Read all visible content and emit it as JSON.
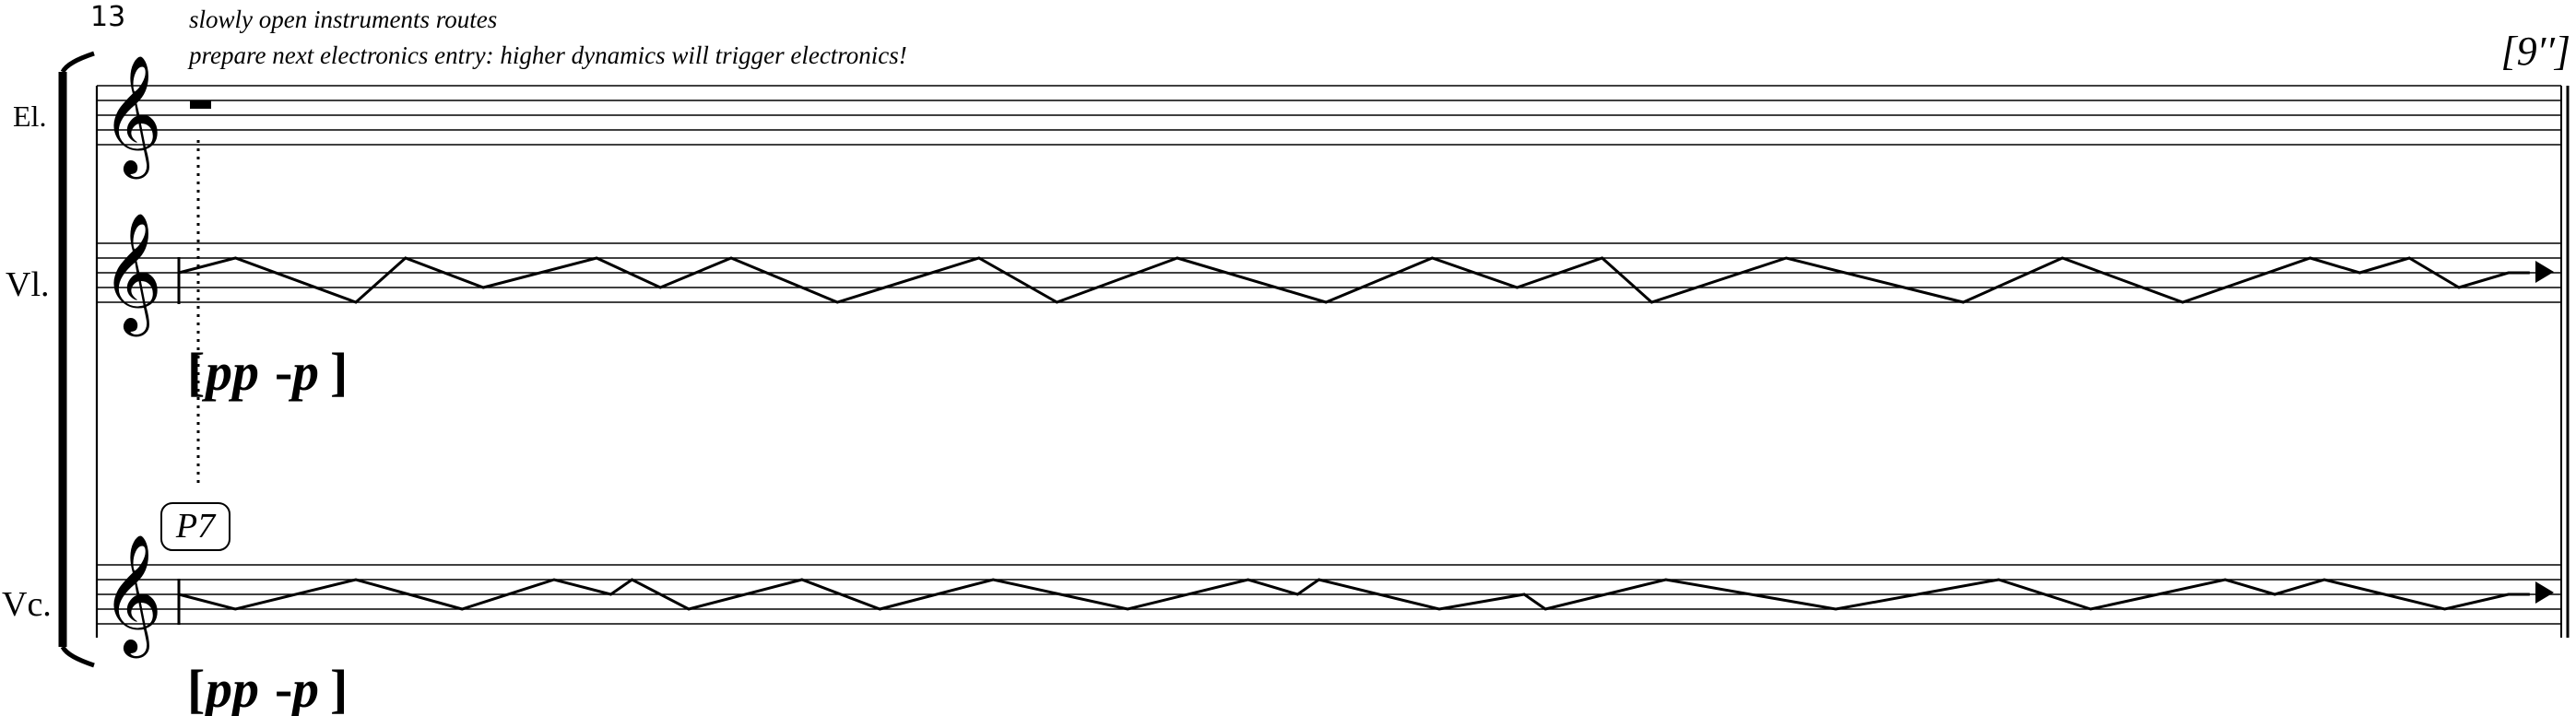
{
  "measure_number": "13",
  "instructions": {
    "line1": "slowly open instruments routes",
    "line2": "prepare next electronics entry: higher dynamics will trigger electronics!"
  },
  "duration_mark": "[9′′]",
  "staves": [
    {
      "id": "el",
      "label": "El.",
      "has_rest": true,
      "zigzag": []
    },
    {
      "id": "vl",
      "label": "Vl.",
      "dynamic": {
        "open": "[",
        "pp": "pp",
        "dash": "-",
        "p": "p",
        "close": "]"
      },
      "zigzag": [
        [
          0.0,
          2
        ],
        [
          0.08,
          1
        ],
        [
          0.25,
          4
        ],
        [
          0.32,
          1
        ],
        [
          0.43,
          3
        ],
        [
          0.59,
          1
        ],
        [
          0.68,
          3
        ],
        [
          0.78,
          1
        ],
        [
          0.93,
          4
        ],
        [
          1.13,
          1
        ],
        [
          1.24,
          4
        ],
        [
          1.41,
          1
        ],
        [
          1.62,
          4
        ],
        [
          1.77,
          1
        ],
        [
          1.89,
          3
        ],
        [
          2.01,
          1
        ],
        [
          2.08,
          4
        ],
        [
          2.27,
          1
        ],
        [
          2.52,
          4
        ],
        [
          2.66,
          1
        ],
        [
          2.83,
          4
        ],
        [
          3.01,
          1
        ],
        [
          3.08,
          2
        ],
        [
          3.15,
          1
        ],
        [
          3.22,
          3
        ],
        [
          3.29,
          2
        ],
        [
          3.32,
          2
        ]
      ]
    },
    {
      "id": "vc",
      "label": "Vc.",
      "rehearsal_box": "P7",
      "dynamic": {
        "open": "[",
        "pp": "pp",
        "dash": "-",
        "p": "p",
        "close": "]"
      },
      "zigzag": [
        [
          0.0,
          2
        ],
        [
          0.08,
          3
        ],
        [
          0.25,
          1
        ],
        [
          0.4,
          3
        ],
        [
          0.53,
          1
        ],
        [
          0.61,
          2
        ],
        [
          0.64,
          1
        ],
        [
          0.72,
          3
        ],
        [
          0.88,
          1
        ],
        [
          0.99,
          3
        ],
        [
          1.15,
          1
        ],
        [
          1.34,
          3
        ],
        [
          1.51,
          1
        ],
        [
          1.58,
          2
        ],
        [
          1.61,
          1
        ],
        [
          1.78,
          3
        ],
        [
          1.9,
          2
        ],
        [
          1.93,
          3
        ],
        [
          2.1,
          1
        ],
        [
          2.34,
          3
        ],
        [
          2.57,
          1
        ],
        [
          2.7,
          3
        ],
        [
          2.89,
          1
        ],
        [
          2.96,
          2
        ],
        [
          3.03,
          1
        ],
        [
          3.2,
          3
        ],
        [
          3.29,
          2
        ],
        [
          3.32,
          2
        ]
      ]
    }
  ]
}
